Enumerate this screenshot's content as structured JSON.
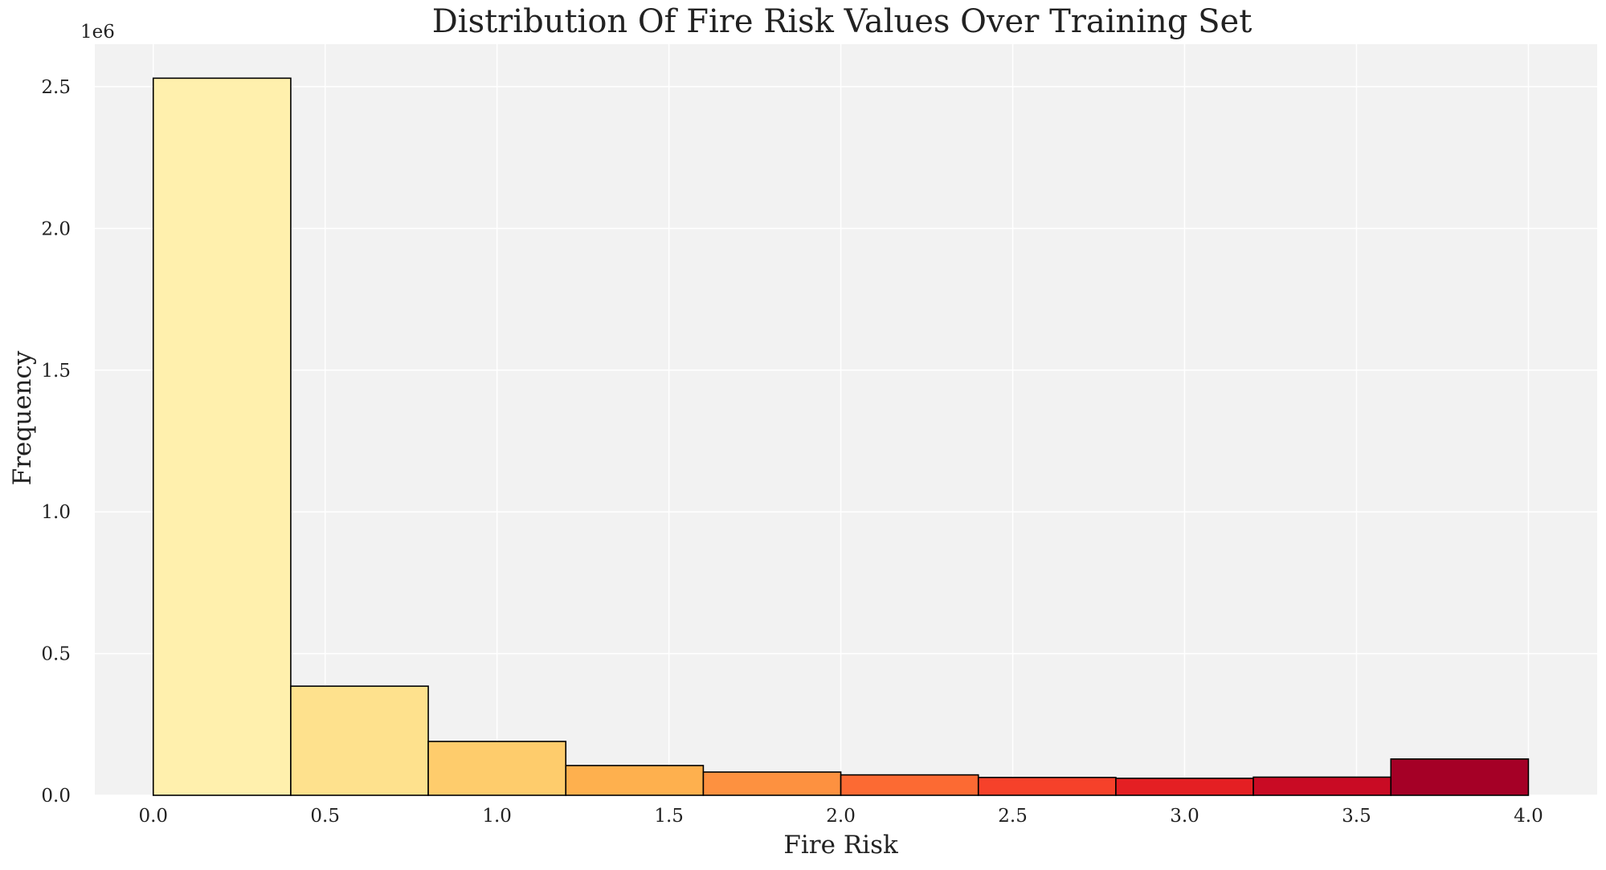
{
  "chart_data": {
    "type": "bar",
    "subtype": "histogram",
    "title": "Distribution Of Fire Risk Values Over Training Set",
    "xlabel": "Fire Risk",
    "ylabel": "Frequency",
    "y_offset_label": "1e6",
    "xlim": [
      -0.17,
      4.2
    ],
    "ylim": [
      0,
      2.65
    ],
    "x_ticks": [
      0.0,
      0.5,
      1.0,
      1.5,
      2.0,
      2.5,
      3.0,
      3.5,
      4.0
    ],
    "x_tick_labels": [
      "0.0",
      "0.5",
      "1.0",
      "1.5",
      "2.0",
      "2.5",
      "3.0",
      "3.5",
      "4.0"
    ],
    "y_ticks": [
      0.0,
      0.5,
      1.0,
      1.5,
      2.0,
      2.5
    ],
    "y_tick_labels": [
      "0.0",
      "0.5",
      "1.0",
      "1.5",
      "2.0",
      "2.5"
    ],
    "grid": true,
    "legend": "none",
    "bins": [
      {
        "x0": 0.0,
        "x1": 0.4,
        "value": 2.53,
        "color": "#fff0ad"
      },
      {
        "x0": 0.4,
        "x1": 0.8,
        "value": 0.385,
        "color": "#fee18d"
      },
      {
        "x0": 0.8,
        "x1": 1.2,
        "value": 0.19,
        "color": "#fecc6c"
      },
      {
        "x0": 1.2,
        "x1": 1.6,
        "value": 0.105,
        "color": "#feb04e"
      },
      {
        "x0": 1.6,
        "x1": 2.0,
        "value": 0.082,
        "color": "#fd9140"
      },
      {
        "x0": 2.0,
        "x1": 2.4,
        "value": 0.072,
        "color": "#fc6a33"
      },
      {
        "x0": 2.4,
        "x1": 2.8,
        "value": 0.063,
        "color": "#f6412a"
      },
      {
        "x0": 2.8,
        "x1": 3.2,
        "value": 0.06,
        "color": "#e41f23"
      },
      {
        "x0": 3.2,
        "x1": 3.6,
        "value": 0.064,
        "color": "#c90b24"
      },
      {
        "x0": 3.6,
        "x1": 4.0,
        "value": 0.128,
        "color": "#a50026"
      }
    ],
    "colors": {
      "plot_background": "#f2f2f2",
      "grid": "#ffffff",
      "bar_edge": "#000000"
    }
  }
}
